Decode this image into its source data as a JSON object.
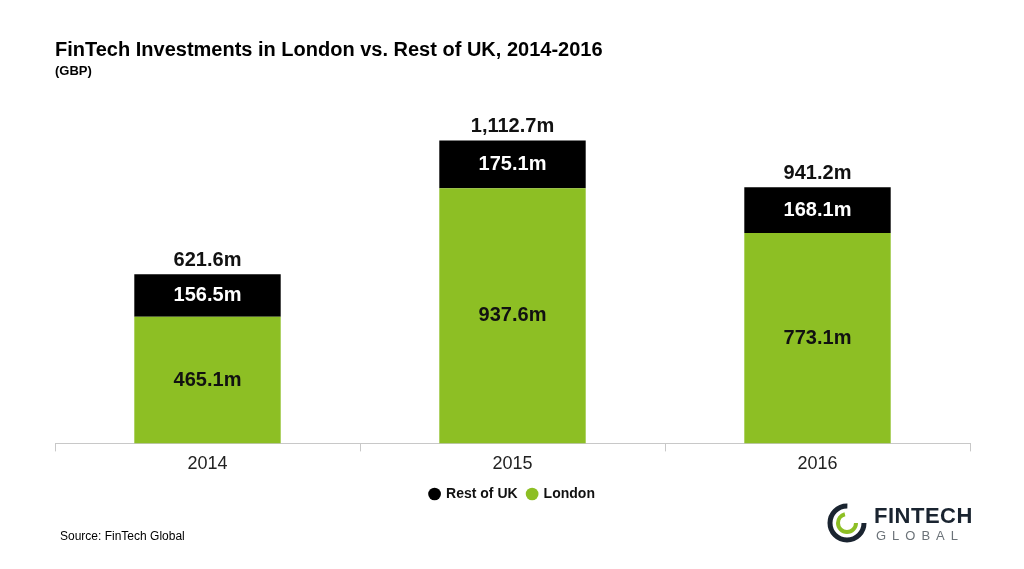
{
  "chart_data": {
    "type": "bar",
    "title": "FinTech Investments in London vs. Rest of UK, 2014-2016",
    "subtitle": "(GBP)",
    "categories": [
      "2014",
      "2015",
      "2016"
    ],
    "series": [
      {
        "name": "London",
        "color": "#8dbf24",
        "values": [
          465.1,
          937.6,
          773.1
        ],
        "value_labels": [
          "465.1m",
          "937.6m",
          "773.1m"
        ]
      },
      {
        "name": "Rest of UK",
        "color": "#000000",
        "values": [
          156.5,
          175.1,
          168.1
        ],
        "value_labels": [
          "156.5m",
          "175.1m",
          "168.1m"
        ]
      }
    ],
    "totals": [
      621.6,
      1112.7,
      941.2
    ],
    "total_labels": [
      "621.6m",
      "1,112.7m",
      "941.2m"
    ],
    "ylim": [
      0,
      1300
    ],
    "stacked": true,
    "data_labels": true,
    "grid": false,
    "tick_labels": "x",
    "legend": "bottom",
    "source": "Source: FinTech Global",
    "logo_text": [
      "FINTECH",
      "GLOBAL"
    ]
  }
}
